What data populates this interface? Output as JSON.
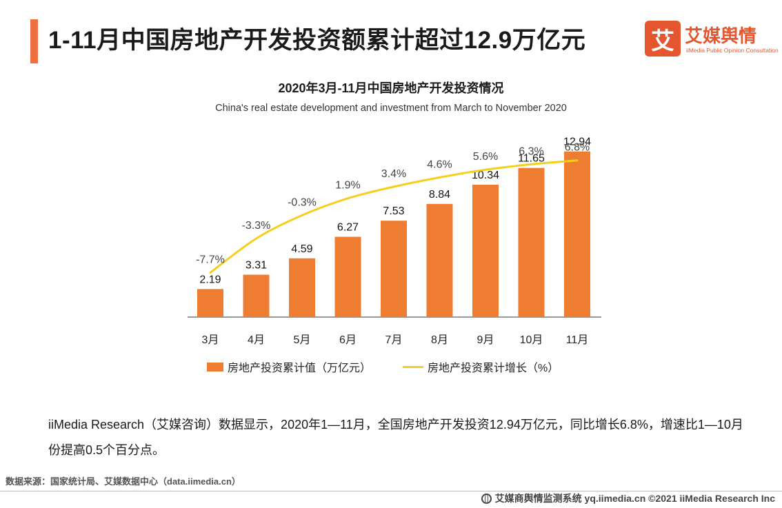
{
  "header": {
    "title": "1-11月中国房地产开发投资额累计超过12.9万亿元"
  },
  "logo": {
    "mark": "艾",
    "name": "艾媒舆情",
    "sub": "iiMedia Public Opinion Consultation"
  },
  "colors": {
    "accent": "#ee6e40",
    "bar": "#ee7d31",
    "line": "#f5cf1b",
    "brand": "#e4572e"
  },
  "chart_data": {
    "type": "bar",
    "title": "2020年3月-11月中国房地产开发投资情况",
    "subtitle": "China's real estate development and investment from March to November 2020",
    "categories": [
      "3月",
      "4月",
      "5月",
      "6月",
      "7月",
      "8月",
      "9月",
      "10月",
      "11月"
    ],
    "series": [
      {
        "name": "房地产投资累计值（万亿元）",
        "type": "bar",
        "values": [
          2.19,
          3.31,
          4.59,
          6.27,
          7.53,
          8.84,
          10.34,
          11.65,
          12.94
        ],
        "labels": [
          "2.19",
          "3.31",
          "4.59",
          "6.27",
          "7.53",
          "8.84",
          "10.34",
          "11.65",
          "12.94"
        ]
      },
      {
        "name": "房地产投资累计增长（%）",
        "type": "line",
        "values": [
          -7.7,
          -3.3,
          -0.3,
          1.9,
          3.4,
          4.6,
          5.6,
          6.3,
          6.8
        ],
        "labels": [
          "-7.7%",
          "-3.3%",
          "-0.3%",
          "1.9%",
          "3.4%",
          "4.6%",
          "5.6%",
          "6.3%",
          "6.8%"
        ]
      }
    ],
    "bar_ylim": [
      0,
      14
    ],
    "line_ylim": [
      -13,
      9
    ],
    "grid": false,
    "legend": "bottom"
  },
  "description": "iiMedia Research（艾媒咨询）数据显示，2020年1—11月，全国房地产开发投资12.94万亿元，同比增长6.8%，增速比1—10月份提高0.5个百分点。",
  "source": "数据来源：国家统计局、艾媒数据中心（data.iimedia.cn）",
  "footer": "艾媒商舆情监测系统 yq.iimedia.cn  ©2021  iiMedia Research  Inc"
}
